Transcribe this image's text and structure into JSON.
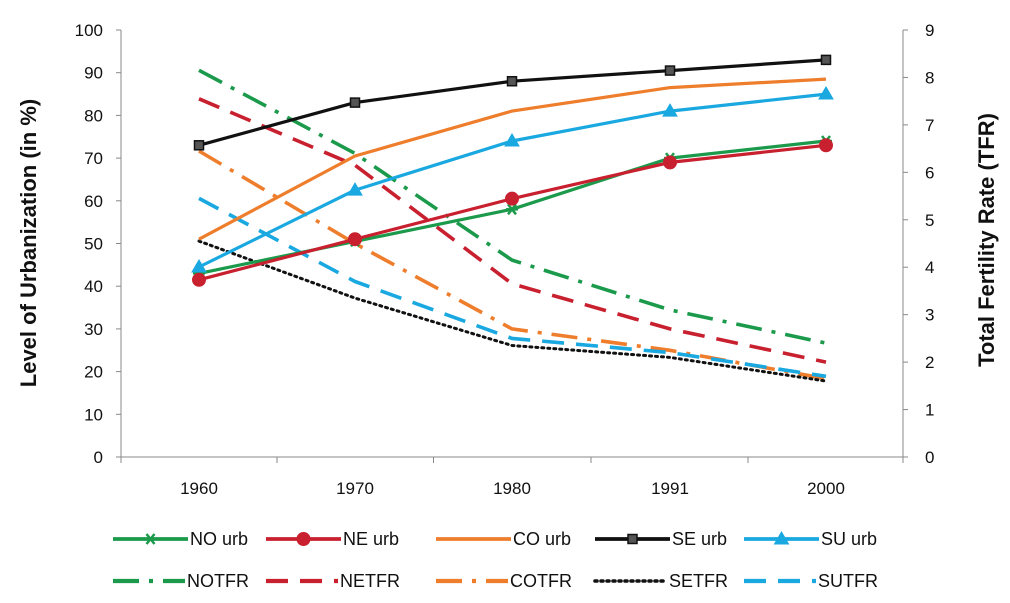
{
  "chart_data": {
    "type": "line",
    "x": [
      "1960",
      "1970",
      "1980",
      "1991",
      "2000"
    ],
    "ylabel": "Level of Urbanization (in %)",
    "ylabel_right": "Total Fertility Rate (TFR)",
    "ylim": [
      0,
      100
    ],
    "yticks": [
      "0",
      "10",
      "20",
      "30",
      "40",
      "50",
      "60",
      "70",
      "80",
      "90",
      "100"
    ],
    "ylim_right": [
      0,
      9
    ],
    "yticks_right": [
      "0",
      "1",
      "2",
      "3",
      "4",
      "5",
      "6",
      "7",
      "8",
      "9"
    ],
    "grid": false,
    "legend_position": "bottom",
    "series": [
      {
        "name": "NO urb",
        "axis": "left",
        "color": "#1a9a4a",
        "style": "solid",
        "marker": "asterisk",
        "values": [
          43,
          50.5,
          58,
          70,
          74
        ]
      },
      {
        "name": "NE urb",
        "axis": "left",
        "color": "#c8202f",
        "style": "solid",
        "marker": "circle",
        "values": [
          41.5,
          51,
          60.5,
          69,
          73
        ]
      },
      {
        "name": "CO urb",
        "axis": "left",
        "color": "#ee7d2c",
        "style": "solid",
        "marker": "none",
        "values": [
          51,
          70.5,
          81,
          86.5,
          88.5
        ]
      },
      {
        "name": "SE urb",
        "axis": "left",
        "color": "#111111",
        "style": "solid",
        "marker": "square",
        "values": [
          73,
          83,
          88,
          90.5,
          93
        ]
      },
      {
        "name": "SU urb",
        "axis": "left",
        "color": "#1aa8e0",
        "style": "solid",
        "marker": "triangle",
        "values": [
          44.5,
          62.5,
          74,
          81,
          85
        ]
      },
      {
        "name": "NOTFR",
        "axis": "right",
        "color": "#1a9a4a",
        "style": "dashdot",
        "marker": "none",
        "values": [
          8.15,
          6.4,
          4.15,
          3.1,
          2.4
        ]
      },
      {
        "name": "NETFR",
        "axis": "right",
        "color": "#c8202f",
        "style": "dash",
        "marker": "none",
        "values": [
          7.55,
          6.15,
          3.65,
          2.7,
          2.0
        ]
      },
      {
        "name": "COTFR",
        "axis": "right",
        "color": "#ee7d2c",
        "style": "dashdot",
        "marker": "none",
        "values": [
          6.45,
          4.5,
          2.7,
          2.25,
          1.65
        ]
      },
      {
        "name": "SETFR",
        "axis": "right",
        "color": "#111111",
        "style": "dot",
        "marker": "none",
        "values": [
          4.55,
          3.35,
          2.35,
          2.1,
          1.6
        ]
      },
      {
        "name": "SUTFR",
        "axis": "right",
        "color": "#1aa8e0",
        "style": "dash",
        "marker": "none",
        "values": [
          5.45,
          3.7,
          2.5,
          2.2,
          1.7
        ]
      }
    ]
  }
}
